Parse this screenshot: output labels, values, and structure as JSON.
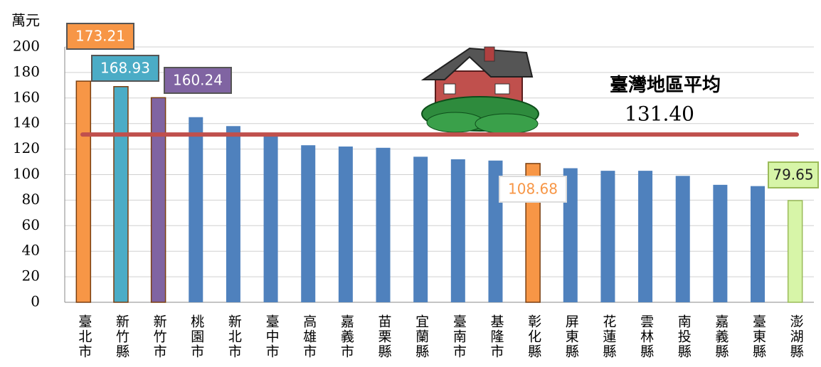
{
  "chart_data": {
    "type": "bar",
    "y_unit": "萬元",
    "categories": [
      "臺北市",
      "新竹縣",
      "新竹市",
      "桃園市",
      "新北市",
      "臺中市",
      "高雄市",
      "嘉義市",
      "苗栗縣",
      "宜蘭縣",
      "臺南市",
      "基隆市",
      "彰化縣",
      "屏東縣",
      "花蓮縣",
      "雲林縣",
      "南投縣",
      "嘉義縣",
      "臺東縣",
      "澎湖縣"
    ],
    "values": [
      173.21,
      168.93,
      160.24,
      145,
      138,
      130,
      123,
      122,
      121,
      114,
      112,
      111,
      108.68,
      105,
      103,
      103,
      99,
      92,
      91,
      79.65
    ],
    "value_labels": [
      "173.21",
      "168.93",
      "160.24",
      null,
      null,
      null,
      null,
      null,
      null,
      null,
      null,
      null,
      "108.68",
      null,
      null,
      null,
      null,
      null,
      null,
      "79.65"
    ],
    "colors": [
      "#f79646",
      "#4bacc6",
      "#8064a2",
      "#4f81bd",
      "#4f81bd",
      "#4f81bd",
      "#4f81bd",
      "#4f81bd",
      "#4f81bd",
      "#4f81bd",
      "#4f81bd",
      "#4f81bd",
      "#f79646",
      "#4f81bd",
      "#4f81bd",
      "#4f81bd",
      "#4f81bd",
      "#4f81bd",
      "#4f81bd",
      "#d7f5a8"
    ],
    "ylim": [
      0,
      200
    ],
    "yticks": [
      0,
      20,
      40,
      60,
      80,
      100,
      120,
      140,
      160,
      180,
      200
    ],
    "grid": true,
    "reference_line": {
      "name": "臺灣地區平均",
      "value": 131.4,
      "value_label": "131.40",
      "color": "#c0504d"
    }
  }
}
